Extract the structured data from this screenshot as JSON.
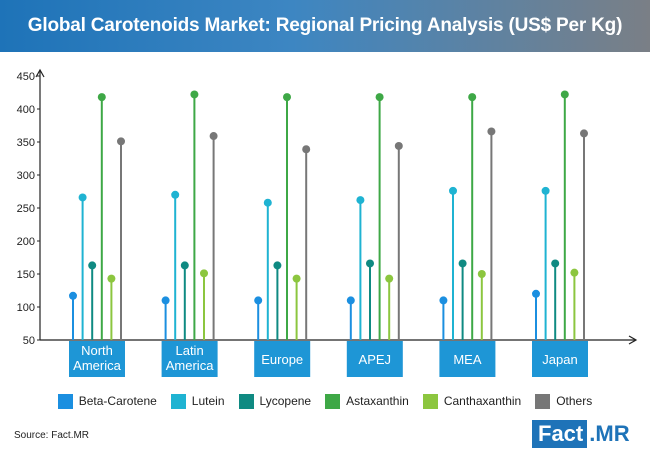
{
  "chart_data": {
    "type": "lollipop",
    "title": "Global Carotenoids Market: Regional Pricing Analysis (US$ Per Kg)",
    "categories": [
      [
        "North",
        "America"
      ],
      [
        "Latin",
        "America"
      ],
      [
        "Europe"
      ],
      [
        "APEJ"
      ],
      [
        "MEA"
      ],
      [
        "Japan"
      ]
    ],
    "ylim": [
      50,
      450
    ],
    "yticks": [
      50,
      100,
      150,
      200,
      250,
      300,
      350,
      400,
      450
    ],
    "series": [
      {
        "name": "Beta-Carotene",
        "color": "#1b8fe0",
        "values": [
          117,
          110,
          110,
          110,
          110,
          120
        ]
      },
      {
        "name": "Lutein",
        "color": "#1fb3d2",
        "values": [
          266,
          270,
          258,
          262,
          276,
          276
        ]
      },
      {
        "name": "Lycopene",
        "color": "#0f8a82",
        "values": [
          163,
          163,
          163,
          166,
          166,
          166
        ]
      },
      {
        "name": "Astaxanthin",
        "color": "#3ea846",
        "values": [
          418,
          422,
          418,
          418,
          418,
          422
        ]
      },
      {
        "name": "Canthaxanthin",
        "color": "#8cc63f",
        "values": [
          143,
          151,
          143,
          143,
          150,
          152
        ]
      },
      {
        "name": "Others",
        "color": "#777777",
        "values": [
          351,
          359,
          339,
          344,
          366,
          363
        ]
      }
    ],
    "category_label_bg": "#1e96d6",
    "axis_color": "#222222"
  },
  "source": "Source: Fact.MR",
  "logo": {
    "left": "Fact",
    "right": ".MR"
  }
}
